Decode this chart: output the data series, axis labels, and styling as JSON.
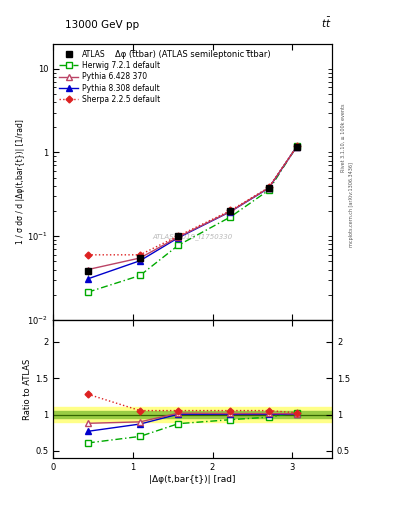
{
  "title_top": "13000 GeV pp",
  "title_right": "tt",
  "plot_title": "Δφ (t̅tbar) (ATLAS semileptonic t̅tbar)",
  "watermark": "ATLAS_2019_I1750330",
  "rivet_label": "Rivet 3.1.10, ≥ 100k events",
  "mcplots_label": "mcplots.cern.ch [arXiv:1306.3436]",
  "ylabel_main": "1 / σ dσ / d |Δφ(t,bar{t})| [1/rad]",
  "ylabel_ratio": "Ratio to ATLAS",
  "xlabel": "|Δφ(t,bar{t})| [rad]",
  "x_data": [
    0.4363,
    1.0908,
    1.5708,
    2.2253,
    2.7053,
    3.0561
  ],
  "atlas_y": [
    0.038,
    0.055,
    0.1,
    0.2,
    0.38,
    1.15
  ],
  "atlas_yerr": [
    0.004,
    0.005,
    0.007,
    0.013,
    0.022,
    0.08
  ],
  "herwig_y": [
    0.0215,
    0.034,
    0.078,
    0.17,
    0.355,
    1.18
  ],
  "pythia6_y": [
    0.04,
    0.055,
    0.098,
    0.198,
    0.378,
    1.17
  ],
  "pythia8_y": [
    0.031,
    0.051,
    0.096,
    0.197,
    0.375,
    1.17
  ],
  "sherpa_y": [
    0.06,
    0.06,
    0.101,
    0.203,
    0.382,
    1.18
  ],
  "ratio_herwig": [
    0.61,
    0.7,
    0.875,
    0.93,
    0.965,
    1.025
  ],
  "ratio_pythia6": [
    0.88,
    0.9,
    1.02,
    1.015,
    1.015,
    1.01
  ],
  "ratio_pythia8": [
    0.77,
    0.87,
    1.005,
    1.005,
    1.005,
    1.005
  ],
  "ratio_sherpa": [
    1.28,
    1.055,
    1.055,
    1.055,
    1.055,
    1.025
  ],
  "colors": {
    "atlas": "#000000",
    "herwig": "#00aa00",
    "pythia6": "#bb4466",
    "pythia8": "#0000cc",
    "sherpa": "#dd2222"
  },
  "xlim": [
    0.0,
    3.5
  ],
  "ylim_main": [
    0.01,
    20.0
  ],
  "ylim_ratio": [
    0.4,
    2.3
  ]
}
